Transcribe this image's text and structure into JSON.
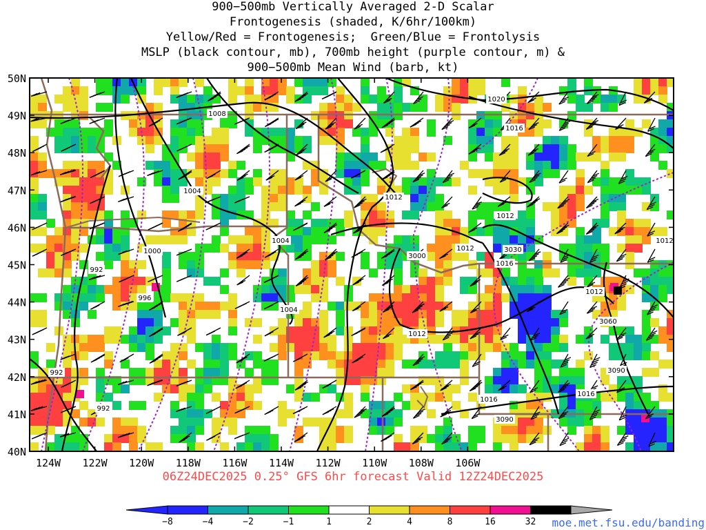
{
  "title_lines": [
    "900−500mb Vertically Averaged 2-D Scalar",
    "Frontogenesis (shaded, K/6hr/100km)",
    "Yellow/Red = Frontogenesis;  Green/Blue = Frontolysis",
    "MSLP (black contour, mb), 700mb height (purple contour, m) &",
    "900−500mb Mean Wind (barb, kt)"
  ],
  "lat_labels": [
    "50N",
    "49N",
    "48N",
    "47N",
    "46N",
    "45N",
    "44N",
    "43N",
    "42N",
    "41N",
    "40N"
  ],
  "lon_labels": [
    "124W",
    "122W",
    "120W",
    "118W",
    "116W",
    "114W",
    "112W",
    "110W",
    "108W",
    "106W"
  ],
  "valid_text": "06Z24DEC2025 0.25° GFS 6hr forecast Valid 12Z24DEC2025",
  "credit_text": "moe.met.fsu.edu/banding",
  "colorbar": {
    "labels": [
      "−8",
      "−4",
      "−2",
      "−1",
      "1",
      "2",
      "4",
      "8",
      "16",
      "32"
    ],
    "colors": [
      "#2424ff",
      "#10a8a8",
      "#10c878",
      "#20e020",
      "#ffffff",
      "#e8e030",
      "#ff9020",
      "#ff4040",
      "#f01090",
      "#000000"
    ]
  },
  "mslp_labels": [
    "1008",
    "1004",
    "1000",
    "992",
    "996",
    "992",
    "992",
    "1004",
    "1004",
    "1012",
    "1012",
    "1012",
    "1016",
    "1016",
    "1012",
    "1016",
    "1020",
    "1016",
    "1012",
    "1012"
  ],
  "height_labels": [
    "3000",
    "3030",
    "3060",
    "3090",
    "3090"
  ],
  "colors": {
    "mslp": "#000000",
    "height": "#a020d0",
    "borders": "#8a6a5a",
    "valid_text": "#ff4a4a",
    "credit_text": "#3a6aff"
  }
}
